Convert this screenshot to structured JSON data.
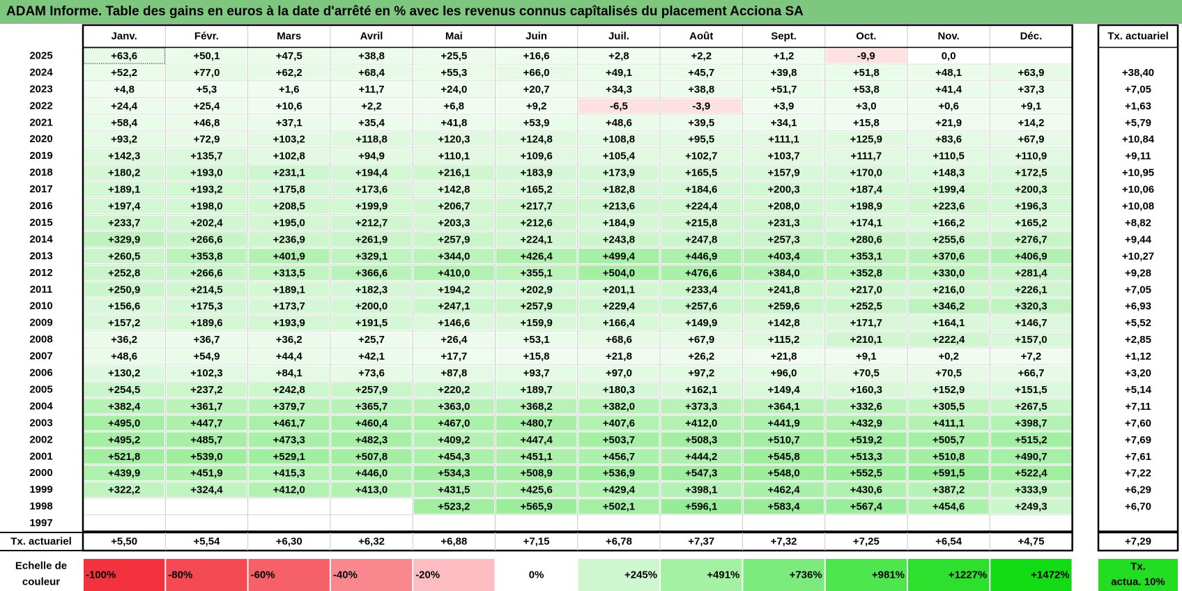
{
  "title": "ADAM Informe. Table des gains en euros à la date d'arrêté en % avec les revenus connus capîtalisés du placement Acciona SA",
  "chart_data": {
    "type": "heatmap",
    "title": "ADAM Informe. Table des gains en euros à la date d'arrêté en % avec les revenus connus capîtalisés du placement Acciona SA",
    "months": [
      "Janv.",
      "Févr.",
      "Mars",
      "Avril",
      "Mai",
      "Juin",
      "Juil.",
      "Août",
      "Sept.",
      "Oct.",
      "Nov.",
      "Déc."
    ],
    "rate_header": "Tx. actuariel",
    "rows": [
      {
        "year": "2025",
        "values": [
          "+63,6",
          "+50,1",
          "+47,5",
          "+38,8",
          "+25,5",
          "+16,6",
          "+2,8",
          "+2,2",
          "+1,2",
          "-9,9",
          "0,0",
          ""
        ],
        "rate": ""
      },
      {
        "year": "2024",
        "values": [
          "+52,2",
          "+77,0",
          "+62,2",
          "+68,4",
          "+55,3",
          "+66,0",
          "+49,1",
          "+45,7",
          "+39,8",
          "+51,8",
          "+48,1",
          "+63,9"
        ],
        "rate": "+38,40"
      },
      {
        "year": "2023",
        "values": [
          "+4,8",
          "+5,3",
          "+1,6",
          "+11,7",
          "+24,0",
          "+20,7",
          "+34,3",
          "+38,8",
          "+51,7",
          "+53,8",
          "+41,4",
          "+37,3"
        ],
        "rate": "+7,05"
      },
      {
        "year": "2022",
        "values": [
          "+24,4",
          "+25,4",
          "+10,6",
          "+2,2",
          "+6,8",
          "+9,2",
          "-6,5",
          "-3,9",
          "+3,9",
          "+3,0",
          "+0,6",
          "+9,1"
        ],
        "rate": "+1,63"
      },
      {
        "year": "2021",
        "values": [
          "+58,4",
          "+46,8",
          "+37,1",
          "+35,4",
          "+41,8",
          "+53,9",
          "+48,6",
          "+39,5",
          "+34,1",
          "+15,8",
          "+21,9",
          "+14,2"
        ],
        "rate": "+5,79"
      },
      {
        "year": "2020",
        "values": [
          "+93,2",
          "+72,9",
          "+103,2",
          "+118,8",
          "+120,3",
          "+124,8",
          "+108,8",
          "+95,5",
          "+111,1",
          "+125,9",
          "+83,6",
          "+67,9"
        ],
        "rate": "+10,84"
      },
      {
        "year": "2019",
        "values": [
          "+142,3",
          "+135,7",
          "+102,8",
          "+94,9",
          "+110,1",
          "+109,6",
          "+105,4",
          "+102,7",
          "+103,7",
          "+111,7",
          "+110,5",
          "+110,9"
        ],
        "rate": "+9,11"
      },
      {
        "year": "2018",
        "values": [
          "+180,2",
          "+193,0",
          "+231,1",
          "+194,4",
          "+216,1",
          "+183,9",
          "+173,9",
          "+165,5",
          "+157,9",
          "+170,0",
          "+148,3",
          "+172,5"
        ],
        "rate": "+10,95"
      },
      {
        "year": "2017",
        "values": [
          "+189,1",
          "+193,2",
          "+175,8",
          "+173,6",
          "+142,8",
          "+165,2",
          "+182,8",
          "+184,6",
          "+200,3",
          "+187,4",
          "+199,4",
          "+200,3"
        ],
        "rate": "+10,06"
      },
      {
        "year": "2016",
        "values": [
          "+197,4",
          "+198,0",
          "+208,5",
          "+199,9",
          "+206,7",
          "+217,7",
          "+213,6",
          "+224,4",
          "+208,0",
          "+198,9",
          "+223,6",
          "+196,3"
        ],
        "rate": "+10,08"
      },
      {
        "year": "2015",
        "values": [
          "+233,7",
          "+202,4",
          "+195,0",
          "+212,7",
          "+203,3",
          "+212,6",
          "+184,9",
          "+215,8",
          "+231,3",
          "+174,1",
          "+166,2",
          "+165,2"
        ],
        "rate": "+8,82"
      },
      {
        "year": "2014",
        "values": [
          "+329,9",
          "+266,6",
          "+236,9",
          "+261,9",
          "+257,9",
          "+224,1",
          "+243,8",
          "+247,8",
          "+257,3",
          "+280,6",
          "+255,6",
          "+276,7"
        ],
        "rate": "+9,44"
      },
      {
        "year": "2013",
        "values": [
          "+260,5",
          "+353,8",
          "+401,9",
          "+329,1",
          "+344,0",
          "+426,4",
          "+499,4",
          "+446,9",
          "+403,4",
          "+353,1",
          "+370,6",
          "+406,9"
        ],
        "rate": "+10,27"
      },
      {
        "year": "2012",
        "values": [
          "+252,8",
          "+266,6",
          "+313,5",
          "+366,6",
          "+410,0",
          "+355,1",
          "+504,0",
          "+476,6",
          "+384,0",
          "+352,8",
          "+330,0",
          "+281,4"
        ],
        "rate": "+9,28"
      },
      {
        "year": "2011",
        "values": [
          "+250,9",
          "+214,5",
          "+189,1",
          "+182,3",
          "+194,2",
          "+202,9",
          "+201,1",
          "+233,4",
          "+241,8",
          "+217,0",
          "+216,0",
          "+226,1"
        ],
        "rate": "+7,05"
      },
      {
        "year": "2010",
        "values": [
          "+156,6",
          "+175,3",
          "+173,7",
          "+200,0",
          "+247,1",
          "+257,9",
          "+229,4",
          "+257,6",
          "+259,6",
          "+252,5",
          "+346,2",
          "+320,3"
        ],
        "rate": "+6,93"
      },
      {
        "year": "2009",
        "values": [
          "+157,2",
          "+189,6",
          "+193,9",
          "+191,5",
          "+146,6",
          "+159,9",
          "+166,4",
          "+149,9",
          "+142,8",
          "+171,7",
          "+164,1",
          "+146,7"
        ],
        "rate": "+5,52"
      },
      {
        "year": "2008",
        "values": [
          "+36,2",
          "+36,7",
          "+36,2",
          "+25,7",
          "+26,4",
          "+53,1",
          "+68,6",
          "+67,9",
          "+115,2",
          "+210,1",
          "+222,4",
          "+157,0"
        ],
        "rate": "+2,85"
      },
      {
        "year": "2007",
        "values": [
          "+48,6",
          "+54,9",
          "+44,4",
          "+42,1",
          "+17,7",
          "+15,8",
          "+21,8",
          "+26,2",
          "+21,8",
          "+9,1",
          "+0,2",
          "+7,2"
        ],
        "rate": "+1,12"
      },
      {
        "year": "2006",
        "values": [
          "+130,2",
          "+102,3",
          "+84,1",
          "+73,6",
          "+87,8",
          "+93,7",
          "+97,0",
          "+97,2",
          "+96,0",
          "+70,5",
          "+70,5",
          "+66,7"
        ],
        "rate": "+3,20"
      },
      {
        "year": "2005",
        "values": [
          "+254,5",
          "+237,2",
          "+242,8",
          "+257,9",
          "+220,2",
          "+189,7",
          "+180,3",
          "+162,1",
          "+149,4",
          "+160,3",
          "+152,9",
          "+151,5"
        ],
        "rate": "+5,14"
      },
      {
        "year": "2004",
        "values": [
          "+382,4",
          "+361,7",
          "+379,7",
          "+365,7",
          "+363,0",
          "+368,2",
          "+382,0",
          "+373,3",
          "+364,1",
          "+332,6",
          "+305,5",
          "+267,5"
        ],
        "rate": "+7,11"
      },
      {
        "year": "2003",
        "values": [
          "+495,0",
          "+447,7",
          "+461,7",
          "+460,4",
          "+467,0",
          "+480,7",
          "+407,6",
          "+412,0",
          "+441,9",
          "+432,9",
          "+411,1",
          "+398,7"
        ],
        "rate": "+7,60"
      },
      {
        "year": "2002",
        "values": [
          "+495,2",
          "+485,7",
          "+473,3",
          "+482,3",
          "+409,2",
          "+447,4",
          "+503,7",
          "+508,3",
          "+510,7",
          "+519,2",
          "+505,7",
          "+515,2"
        ],
        "rate": "+7,69"
      },
      {
        "year": "2001",
        "values": [
          "+521,8",
          "+539,0",
          "+529,1",
          "+507,8",
          "+454,3",
          "+451,1",
          "+456,7",
          "+444,2",
          "+545,8",
          "+513,3",
          "+510,8",
          "+490,7"
        ],
        "rate": "+7,61"
      },
      {
        "year": "2000",
        "values": [
          "+439,9",
          "+451,9",
          "+415,3",
          "+446,0",
          "+534,3",
          "+508,9",
          "+536,9",
          "+547,3",
          "+548,0",
          "+552,5",
          "+591,5",
          "+522,4"
        ],
        "rate": "+7,22"
      },
      {
        "year": "1999",
        "values": [
          "+322,2",
          "+324,4",
          "+412,0",
          "+413,0",
          "+431,5",
          "+425,6",
          "+429,4",
          "+398,1",
          "+462,4",
          "+430,6",
          "+387,2",
          "+333,9"
        ],
        "rate": "+6,29"
      },
      {
        "year": "1998",
        "values": [
          "",
          "",
          "",
          "",
          "+523,2",
          "+565,9",
          "+502,1",
          "+596,1",
          "+583,4",
          "+567,4",
          "+454,6",
          "+249,3"
        ],
        "rate": "+6,70"
      },
      {
        "year": "1997",
        "values": [
          "",
          "",
          "",
          "",
          "",
          "",
          "",
          "",
          "",
          "",
          "",
          ""
        ],
        "rate": ""
      }
    ],
    "footer": {
      "label": "Tx. actuariel",
      "values": [
        "+5,50",
        "+5,54",
        "+6,30",
        "+6,32",
        "+6,88",
        "+7,15",
        "+6,78",
        "+7,37",
        "+7,32",
        "+7,25",
        "+6,54",
        "+4,75"
      ],
      "rate": "+7,29"
    },
    "scale": {
      "label_line1": "Echelle de",
      "label_line2": "couleur",
      "steps": [
        {
          "label": "-100%",
          "color": "#f2333e"
        },
        {
          "label": "-80%",
          "color": "#f44a53"
        },
        {
          "label": "-60%",
          "color": "#f66068"
        },
        {
          "label": "-40%",
          "color": "#f8888e"
        },
        {
          "label": "-20%",
          "color": "#fbbdc0"
        },
        {
          "label": "0%",
          "color": "#ffffff"
        },
        {
          "label": "+245%",
          "color": "#cff7cf"
        },
        {
          "label": "+491%",
          "color": "#a4f1a4"
        },
        {
          "label": "+736%",
          "color": "#7dea7d"
        },
        {
          "label": "+981%",
          "color": "#4fe54f"
        },
        {
          "label": "+1227%",
          "color": "#2ee02e"
        },
        {
          "label": "+1472%",
          "color": "#14dc14"
        }
      ],
      "rate_line1": "Tx.",
      "rate_line2": "actua. 10%",
      "rate_color": "#22dd22"
    },
    "colors": {
      "title_bg": "#7ec77e",
      "negative": "#fde0e0",
      "positive_light": "#f1fcf1",
      "positive_max": "#95ec95"
    }
  }
}
